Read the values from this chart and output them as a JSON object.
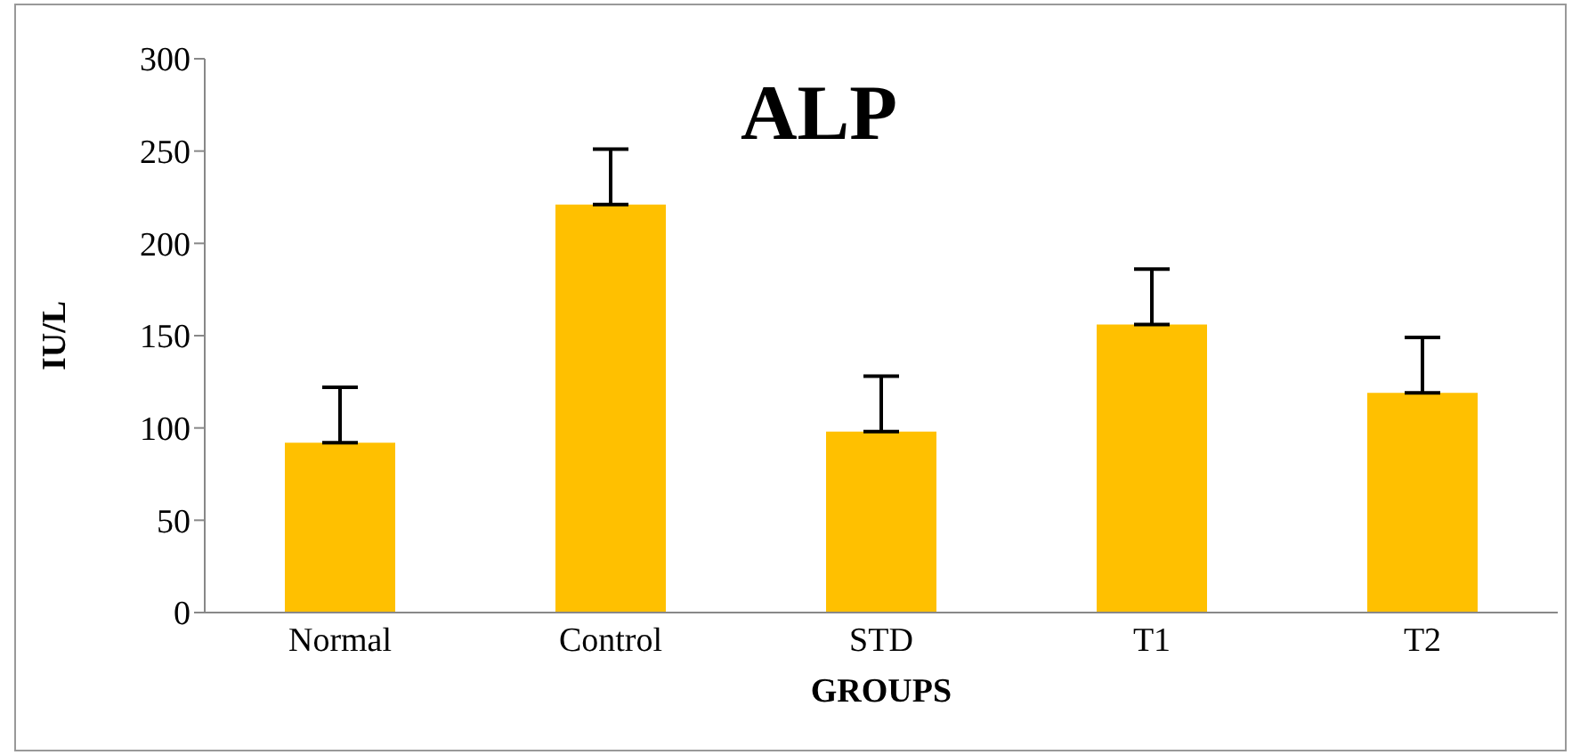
{
  "chart_data": {
    "type": "bar",
    "title": "ALP",
    "xlabel": "GROUPS",
    "ylabel": "IU/L",
    "categories": [
      "Normal",
      "Control",
      "STD",
      "T1",
      "T2"
    ],
    "values": [
      92,
      221,
      98,
      156,
      119
    ],
    "errors": [
      [
        92,
        122
      ],
      [
        221,
        251
      ],
      [
        98,
        128
      ],
      [
        156,
        186
      ],
      [
        119,
        149
      ]
    ],
    "color": "#ffc000",
    "ylim": [
      0,
      300
    ],
    "yticks": [
      0,
      50,
      100,
      150,
      200,
      250,
      300
    ],
    "grid": false,
    "legend": false
  }
}
